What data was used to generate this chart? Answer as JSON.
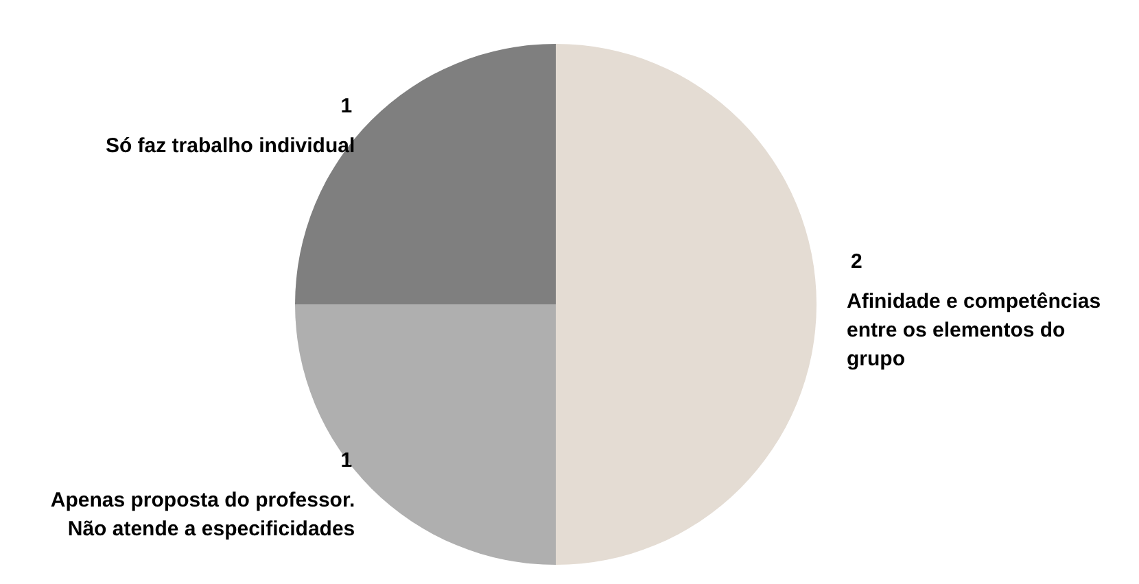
{
  "chart_data": {
    "type": "pie",
    "categories": [
      "Afinidade e competências\nentre os elementos do\ngrupo",
      "Apenas proposta do professor.\nNão atende a especificidades",
      "Só faz trabalho individual"
    ],
    "values": [
      2,
      1,
      1
    ],
    "colors": [
      "#e4dcd3",
      "#afafaf",
      "#7f7f7f"
    ],
    "data_labels": true
  }
}
